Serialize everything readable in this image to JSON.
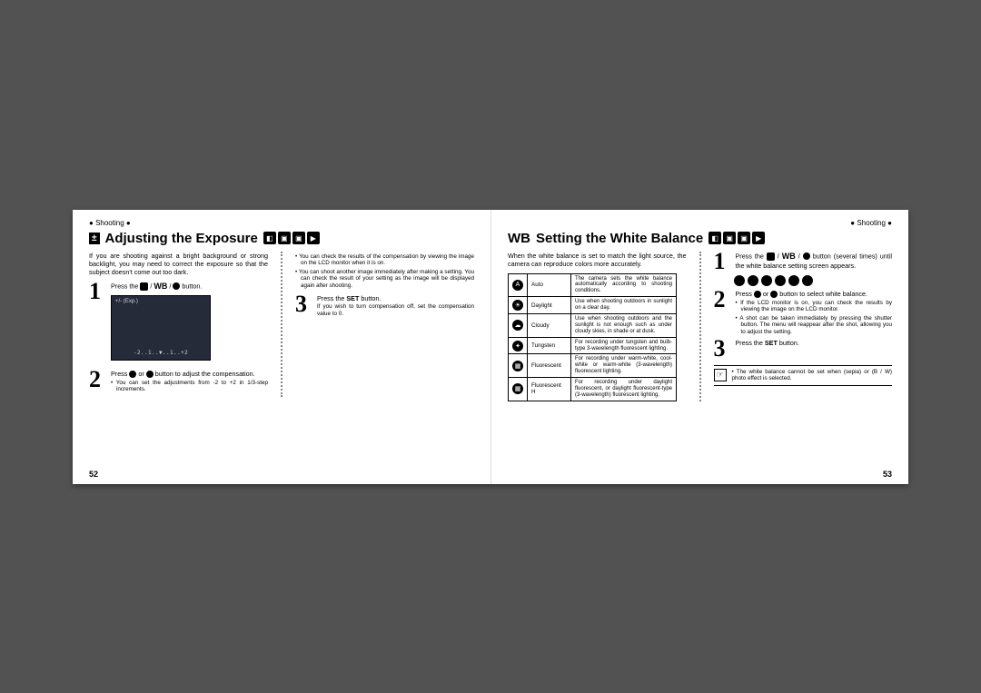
{
  "section_label": "Shooting",
  "left_page": {
    "number": "52",
    "title_prefix_icon": "±",
    "title": "Adjusting the Exposure",
    "intro": "If you are shooting against a bright background or strong backlight, you may need to correct the exposure so that the subject doesn't come out too dark.",
    "step1": {
      "text_a": "Press the ",
      "text_b": " button."
    },
    "lcd_top": "+/-  (Exp.)",
    "lcd_scale": "-2..1..▼..1..+2",
    "step2": {
      "text_a": "Press ",
      "text_b": " or ",
      "text_c": " button to adjust the compensation."
    },
    "step2_bul": "You can set the adjustments from -2 to +2 in 1/3-step increments.",
    "col2_bul1": "You can check the results of the compensation by viewing the image on the LCD monitor when it is on.",
    "col2_bul2": "You can shoot another image immediately after making a setting. You can check the result of your setting as the image will be displayed again after shooting.",
    "step3": {
      "text_a": "Press the ",
      "set": "SET",
      "text_b": " button."
    },
    "step3_sub": "If you wish to turn compensation off, set the compensation value to 0."
  },
  "right_page": {
    "number": "53",
    "title_prefix": "WB",
    "title": "Setting the White Balance",
    "intro": "When the white balance is set to match the light source, the camera can reproduce colors more accurately.",
    "wb_rows": [
      {
        "icon": "A",
        "name": "Auto",
        "desc": "The camera sets the white balance automatically according to shooting conditions."
      },
      {
        "icon": "☀",
        "name": "Daylight",
        "desc": "Use when shooting outdoors in sunlight on a clear day."
      },
      {
        "icon": "☁",
        "name": "Cloudy",
        "desc": "Use when shooting outdoors and the sunlight is not enough such as under cloudy skies, in shade or at dusk."
      },
      {
        "icon": "✦",
        "name": "Tungsten",
        "desc": "For recording under tungsten and bulb-type 3-wavelength fluorescent lighting."
      },
      {
        "icon": "▦",
        "name": "Fluorescent",
        "desc": "For recording under warm-white, cool-white or warm-white (3-wavelength) fluorescent lighting."
      },
      {
        "icon": "▦",
        "name": "Fluorescent H",
        "desc": "For recording under daylight fluorescent, or daylight fluorescent-type (3-wavelength) fluorescent lighting."
      }
    ],
    "step1": {
      "text_a": "Press the ",
      "text_b": " button (several times) until the white balance setting screen appears."
    },
    "step2": {
      "text_a": "Press ",
      "text_b": " or ",
      "text_c": " button to select white balance."
    },
    "step2_bul1": "If the LCD monitor is on, you can check the results by viewing the image on the LCD monitor.",
    "step2_bul2": "A shot can be taken immediately by pressing the shutter button. The menu will reappear after the shot, allowing you to adjust the setting.",
    "step3": {
      "text_a": "Press the ",
      "set": "SET",
      "text_b": " button."
    },
    "note": "The white balance cannot be set when  (sepia) or  (B / W) photo effect is selected."
  },
  "colors": {
    "page_bg": "#ffffff",
    "body_bg": "#525252",
    "lcd_bg": "#262b3a"
  }
}
